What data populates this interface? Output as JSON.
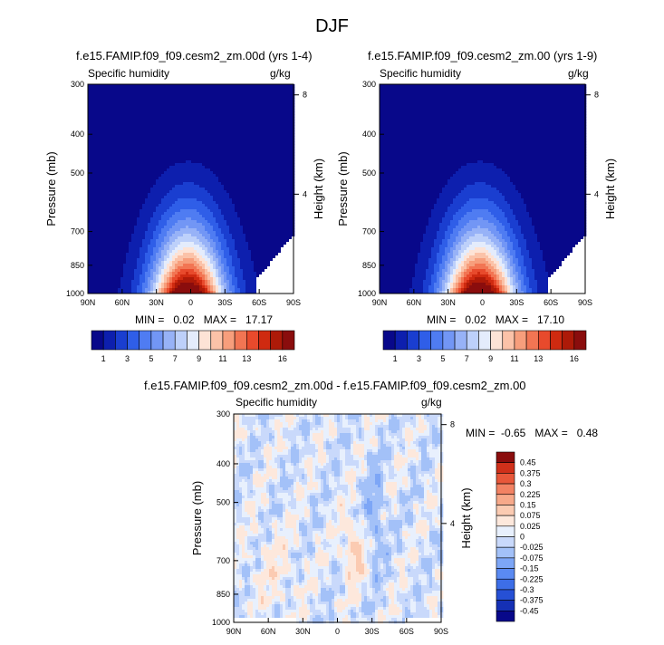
{
  "figure": {
    "title": "DJF"
  },
  "colors": {
    "palette_sh": [
      "#08088a",
      "#0d1fae",
      "#1a3ed0",
      "#2f5ee8",
      "#4f7cf2",
      "#7296f5",
      "#97b2f7",
      "#bdd0fa",
      "#e4ecfc",
      "#fde3d6",
      "#fbc2a8",
      "#f79e7c",
      "#f27553",
      "#e84a2c",
      "#cf2a10",
      "#ad1a08",
      "#8a0d0d"
    ],
    "palette_diff": [
      "#08088a",
      "#1530b5",
      "#2650d5",
      "#3d6ee8",
      "#5a8af2",
      "#7da6f6",
      "#a3c1f8",
      "#c9d9fb",
      "#e8f0fd",
      "#fde8dc",
      "#fbcbb2",
      "#f7a98a",
      "#f28263",
      "#e8573a",
      "#d0301a",
      "#8a0d0d"
    ]
  },
  "chart_data": [
    {
      "type": "heatmap",
      "title": "f.e15.FAMIP.f09_f09.cesm2_zm.00d (yrs 1-4)",
      "subtitle_left": "Specific humidity",
      "subtitle_right": "g/kg",
      "xlabel": "",
      "ylabel": "Pressure (mb)",
      "ylabel_right": "Height (km)",
      "x_ticks": [
        "90N",
        "60N",
        "30N",
        "0",
        "30S",
        "60S",
        "90S"
      ],
      "y_ticks": [
        "300",
        "400",
        "500",
        "700",
        "850",
        "1000"
      ],
      "y_right_ticks": [
        "8",
        "4"
      ],
      "ylim": [
        1000,
        300
      ],
      "y_log": true,
      "stats": "MIN =   0.02   MAX =   17.17",
      "colorbar_labels": [
        "1",
        "3",
        "5",
        "7",
        "9",
        "11",
        "13",
        "16"
      ],
      "colorbar_levels": [
        1,
        2,
        3,
        4,
        5,
        6,
        7,
        8,
        9,
        10,
        11,
        12,
        13,
        14,
        15,
        16
      ],
      "min": 0.02,
      "max": 17.17
    },
    {
      "type": "heatmap",
      "title": "f.e15.FAMIP.f09_f09.cesm2_zm.00 (yrs 1-9)",
      "subtitle_left": "Specific humidity",
      "subtitle_right": "g/kg",
      "xlabel": "",
      "ylabel": "Pressure (mb)",
      "ylabel_right": "Height (km)",
      "x_ticks": [
        "90N",
        "60N",
        "30N",
        "0",
        "30S",
        "60S",
        "90S"
      ],
      "y_ticks": [
        "300",
        "400",
        "500",
        "700",
        "850",
        "1000"
      ],
      "y_right_ticks": [
        "8",
        "4"
      ],
      "ylim": [
        1000,
        300
      ],
      "y_log": true,
      "stats": "MIN =   0.02   MAX =   17.10",
      "colorbar_labels": [
        "1",
        "3",
        "5",
        "7",
        "9",
        "11",
        "13",
        "16"
      ],
      "colorbar_levels": [
        1,
        2,
        3,
        4,
        5,
        6,
        7,
        8,
        9,
        10,
        11,
        12,
        13,
        14,
        15,
        16
      ],
      "min": 0.02,
      "max": 17.1
    },
    {
      "type": "heatmap",
      "title": "f.e15.FAMIP.f09_f09.cesm2_zm.00d - f.e15.FAMIP.f09_f09.cesm2_zm.00",
      "subtitle_left": "Specific humidity",
      "subtitle_right": "g/kg",
      "xlabel": "",
      "ylabel": "Pressure (mb)",
      "ylabel_right": "Height (km)",
      "x_ticks": [
        "90N",
        "60N",
        "30N",
        "0",
        "30S",
        "60S",
        "90S"
      ],
      "y_ticks": [
        "300",
        "400",
        "500",
        "700",
        "850",
        "1000"
      ],
      "y_right_ticks": [
        "8",
        "4"
      ],
      "ylim": [
        1000,
        300
      ],
      "y_log": true,
      "stats": "MIN =  -0.65   MAX =   0.48",
      "colorbar_labels": [
        "0.45",
        "0.375",
        "0.3",
        "0.225",
        "0.15",
        "0.075",
        "0.025",
        "0",
        "-0.025",
        "-0.075",
        "-0.15",
        "-0.225",
        "-0.3",
        "-0.375",
        "-0.45"
      ],
      "colorbar_levels": [
        -0.45,
        -0.375,
        -0.3,
        -0.225,
        -0.15,
        -0.075,
        -0.025,
        0,
        0.025,
        0.075,
        0.15,
        0.225,
        0.3,
        0.375,
        0.45
      ],
      "min": -0.65,
      "max": 0.48
    }
  ]
}
